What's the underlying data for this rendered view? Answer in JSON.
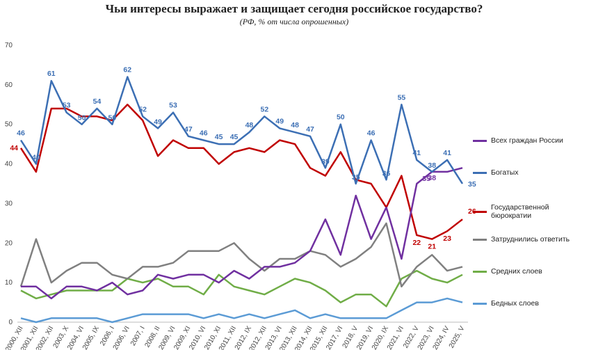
{
  "chart_data": {
    "type": "line",
    "title": "Чьи интересы выражает и защищает сегодня российское государство?",
    "subtitle": "(РФ, % от числа опрошенных)",
    "categories": [
      "2000, XII",
      "2001, XII",
      "2002, XII",
      "2003, X",
      "2004, VI",
      "2005, IX",
      "2006, I",
      "2006, VI",
      "2007, I",
      "2008, II",
      "2009, VI",
      "2009, XI",
      "2010, VI",
      "2010, XI",
      "2011, XII",
      "2012, IX",
      "2012, XII",
      "2013, VI",
      "2013, XII",
      "2014, XII",
      "2015, XII",
      "2017, VI",
      "2018, V",
      "2019, VI",
      "2020, IX",
      "2021, VI",
      "2022, V",
      "2023, VI",
      "2024, IV",
      "2025, V"
    ],
    "ylim": [
      0,
      70
    ],
    "yticks": [
      0,
      10,
      20,
      30,
      40,
      50,
      60,
      70
    ],
    "grid": false,
    "series": [
      {
        "name": "Всех граждан России",
        "color": "#7030a0",
        "values": [
          9,
          9,
          6,
          9,
          9,
          8,
          10,
          7,
          8,
          12,
          11,
          12,
          12,
          10,
          13,
          11,
          14,
          14,
          15,
          18,
          26,
          17,
          32,
          21,
          29,
          16,
          35,
          38,
          38,
          39
        ]
      },
      {
        "name": "Богатых",
        "color": "#3c6fb4",
        "values": [
          46,
          40,
          61,
          53,
          50,
          54,
          50,
          62,
          52,
          49,
          53,
          47,
          46,
          45,
          45,
          48,
          52,
          49,
          48,
          47,
          39,
          50,
          35,
          46,
          36,
          55,
          41,
          38,
          41,
          35
        ]
      },
      {
        "name": "Государственной бюрократии",
        "color": "#c00000",
        "values": [
          44,
          38,
          54,
          54,
          52,
          52,
          51,
          55,
          51,
          42,
          46,
          44,
          44,
          40,
          43,
          44,
          43,
          46,
          45,
          39,
          37,
          43,
          36,
          35,
          29,
          37,
          22,
          21,
          23,
          26
        ]
      },
      {
        "name": "Затруднились ответить",
        "color": "#808080",
        "values": [
          9,
          21,
          10,
          13,
          15,
          15,
          12,
          11,
          14,
          14,
          15,
          18,
          18,
          18,
          20,
          16,
          13,
          16,
          16,
          18,
          17,
          14,
          16,
          19,
          25,
          9,
          14,
          17,
          13,
          14
        ]
      },
      {
        "name": "Средних слоев",
        "color": "#70ad47",
        "values": [
          8,
          6,
          7,
          8,
          8,
          8,
          8,
          11,
          10,
          11,
          9,
          9,
          7,
          12,
          9,
          8,
          7,
          9,
          11,
          10,
          8,
          5,
          7,
          7,
          4,
          11,
          13,
          11,
          10,
          12
        ]
      },
      {
        "name": "Бедных слоев",
        "color": "#5b9bd5",
        "values": [
          1,
          0,
          1,
          1,
          1,
          1,
          0,
          1,
          2,
          2,
          2,
          2,
          1,
          2,
          1,
          2,
          1,
          2,
          3,
          1,
          2,
          1,
          1,
          1,
          1,
          3,
          5,
          5,
          6,
          5
        ]
      }
    ]
  }
}
